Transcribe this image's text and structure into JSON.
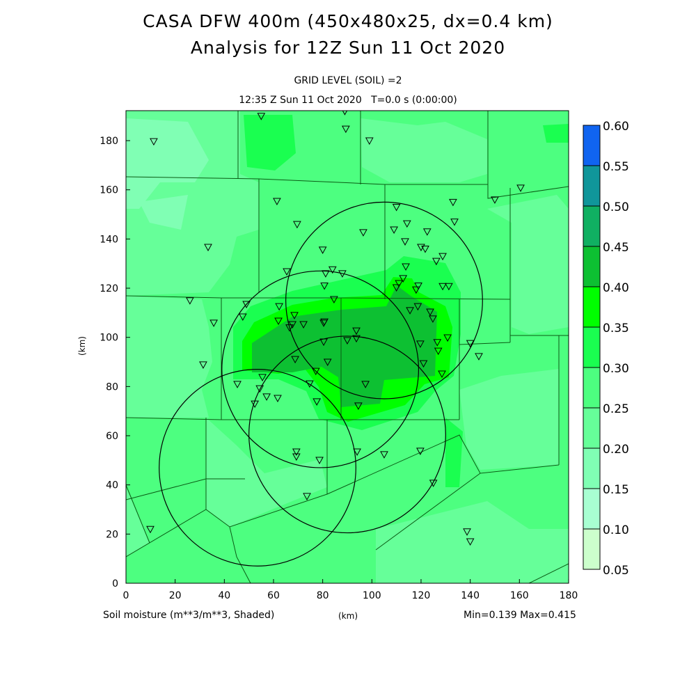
{
  "title_line1": "CASA DFW 400m (450x480x25, dx=0.4 km)",
  "title_line2": "Analysis for 12Z Sun 11 Oct 2020",
  "grid_level": "GRID LEVEL (SOIL) =2",
  "time_line": "12:35 Z Sun 11 Oct 2020   T=0.0 s (0:00:00)",
  "xlabel": "(km)",
  "ylabel": "(km)",
  "field_label": "Soil moisture (m**3/m**3, Shaded)",
  "minmax": "Min=0.139 Max=0.415",
  "xticks": [
    "0",
    "20",
    "40",
    "60",
    "80",
    "100",
    "120",
    "140",
    "160",
    "180"
  ],
  "yticks": [
    "0",
    "20",
    "40",
    "60",
    "80",
    "100",
    "120",
    "140",
    "160",
    "180"
  ],
  "colorbar": {
    "labels": [
      "0.05",
      "0.10",
      "0.15",
      "0.20",
      "0.25",
      "0.30",
      "0.35",
      "0.40",
      "0.45",
      "0.50",
      "0.55",
      "0.60"
    ],
    "colors": [
      "#ccffcc",
      "#a8ffd2",
      "#80ffb4",
      "#66ff99",
      "#4dff80",
      "#1aff50",
      "#00ff00",
      "#0dc032",
      "#10b062",
      "#10969a",
      "#1064f0"
    ]
  },
  "radar_circles_km": [
    {
      "x": 53.5,
      "y": 47,
      "r": 40
    },
    {
      "x": 79,
      "y": 87,
      "r": 40
    },
    {
      "x": 90,
      "y": 60.5,
      "r": 40
    },
    {
      "x": 105,
      "y": 115,
      "r": 40
    }
  ],
  "stations_km": [
    [
      11.3,
      179.7
    ],
    [
      55,
      190
    ],
    [
      89,
      192
    ],
    [
      89.4,
      184.8
    ],
    [
      99,
      180
    ],
    [
      160.5,
      160.8
    ],
    [
      150,
      156
    ],
    [
      61.4,
      155.4
    ],
    [
      133,
      155
    ],
    [
      110,
      153
    ],
    [
      114.3,
      146.3
    ],
    [
      133.6,
      147
    ],
    [
      69.6,
      146
    ],
    [
      96.5,
      142.7
    ],
    [
      109,
      143.8
    ],
    [
      122.5,
      143
    ],
    [
      113.5,
      139
    ],
    [
      33.4,
      136.7
    ],
    [
      80,
      135.6
    ],
    [
      120,
      136.7
    ],
    [
      121.7,
      136
    ],
    [
      128.8,
      133
    ],
    [
      126.2,
      131
    ],
    [
      65.4,
      126.8
    ],
    [
      81.2,
      126
    ],
    [
      84,
      127.6
    ],
    [
      88,
      126
    ],
    [
      113.8,
      128.8
    ],
    [
      112.7,
      124
    ],
    [
      111,
      122
    ],
    [
      110,
      120.3
    ],
    [
      118.9,
      121
    ],
    [
      118,
      119.4
    ],
    [
      128.8,
      120.8
    ],
    [
      131.3,
      120.8
    ],
    [
      80.7,
      121
    ],
    [
      26,
      115
    ],
    [
      84.6,
      115.5
    ],
    [
      49,
      113.5
    ],
    [
      62.3,
      112.6
    ],
    [
      115.5,
      111
    ],
    [
      118.7,
      112.6
    ],
    [
      123.7,
      110.4
    ],
    [
      47.5,
      108.4
    ],
    [
      35.7,
      105.9
    ],
    [
      62,
      106.7
    ],
    [
      66.5,
      104
    ],
    [
      67.7,
      105.3
    ],
    [
      72.2,
      105.3
    ],
    [
      80.4,
      105.9
    ],
    [
      80.7,
      106.4
    ],
    [
      68.5,
      109
    ],
    [
      124.8,
      107.6
    ],
    [
      93.7,
      102.7
    ],
    [
      90,
      98.8
    ],
    [
      93.7,
      99.6
    ],
    [
      80.4,
      98.2
    ],
    [
      130.8,
      99.9
    ],
    [
      126.6,
      98
    ],
    [
      119.7,
      97.4
    ],
    [
      140,
      97.6
    ],
    [
      143.5,
      92.3
    ],
    [
      127,
      94.5
    ],
    [
      31.4,
      88.9
    ],
    [
      68.8,
      91.1
    ],
    [
      82,
      90
    ],
    [
      121,
      89.4
    ],
    [
      77.2,
      86.3
    ],
    [
      128.5,
      85.2
    ],
    [
      55.5,
      83.8
    ],
    [
      45.3,
      81
    ],
    [
      74.7,
      81.2
    ],
    [
      54.4,
      79.2
    ],
    [
      97.4,
      81
    ],
    [
      57.2,
      75.9
    ],
    [
      61.7,
      75.3
    ],
    [
      77.6,
      73.9
    ],
    [
      52.4,
      73
    ],
    [
      94.5,
      72.2
    ],
    [
      69.3,
      53.5
    ],
    [
      69.3,
      51.5
    ],
    [
      94,
      53.5
    ],
    [
      105,
      52.4
    ],
    [
      119.7,
      53.8
    ],
    [
      78.7,
      50.1
    ],
    [
      125,
      40.8
    ],
    [
      73.6,
      35.4
    ],
    [
      9.9,
      22
    ],
    [
      138.7,
      21
    ],
    [
      140,
      17
    ]
  ]
}
